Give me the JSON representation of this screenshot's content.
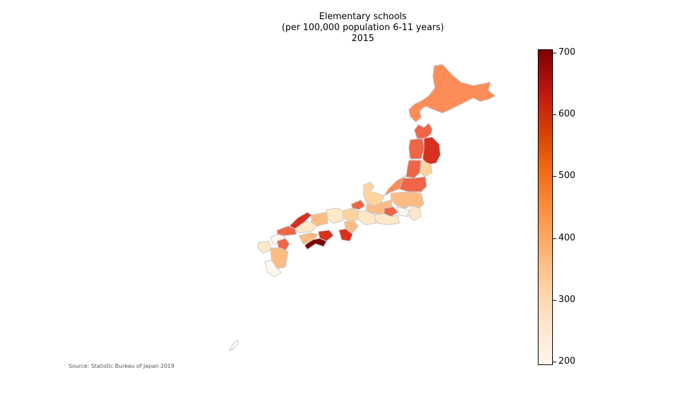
{
  "title": {
    "line1": "Elementary schools",
    "line2": "(per 100,000 population 6-11 years)",
    "line3": "2015"
  },
  "source": "Source: Statistic Bureau of Japan 2019",
  "colorbar": {
    "colormap": "OrRd",
    "min": 195,
    "max": 705,
    "ticks": [
      "200",
      "300",
      "400",
      "500",
      "600",
      "700"
    ],
    "tick_values": [
      200,
      300,
      400,
      500,
      600,
      700
    ]
  },
  "colors": {
    "border": "#c8c8c8",
    "background": "#ffffff"
  }
}
